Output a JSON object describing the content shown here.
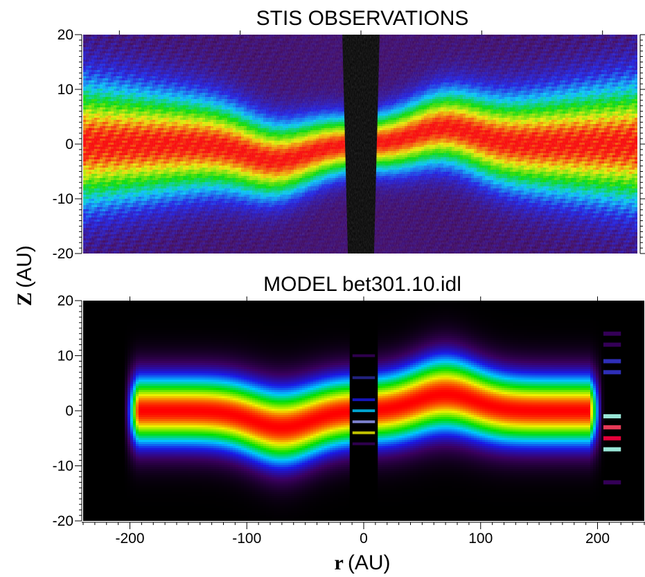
{
  "chart_data": [
    {
      "type": "heatmap",
      "title": "STIS OBSERVATIONS",
      "ylabel_symbol": "Z",
      "ylabel_unit": "(AU)",
      "ylim": [
        -20,
        20
      ],
      "xlim": [
        -230,
        230
      ],
      "y_ticks": [
        "20",
        "10",
        "0",
        "-10",
        "-20"
      ],
      "y_tick_values": [
        20,
        10,
        0,
        -10,
        -20
      ],
      "colormap": [
        "#000000",
        "#3a0060",
        "#1a1ae6",
        "#00c8ff",
        "#00e000",
        "#f0f000",
        "#ff0000"
      ],
      "masked_region_r": [
        -12,
        12
      ],
      "midplane_warp": {
        "center_r": -70,
        "offset_z": -3
      }
    },
    {
      "type": "heatmap",
      "title": "MODEL  bet301.10.idl",
      "xlabel_symbol": "r",
      "xlabel_unit": "(AU)",
      "ylim": [
        -20,
        20
      ],
      "xlim": [
        -240,
        240
      ],
      "x_ticks": [
        "-200",
        "-100",
        "0",
        "100",
        "200"
      ],
      "x_tick_values": [
        -200,
        -100,
        0,
        100,
        200
      ],
      "y_ticks": [
        "20",
        "10",
        "0",
        "-10",
        "-20"
      ],
      "y_tick_values": [
        20,
        10,
        0,
        -10,
        -20
      ],
      "colormap": [
        "#000000",
        "#3a0060",
        "#1a1ae6",
        "#00c8ff",
        "#00e000",
        "#f0f000",
        "#ff0000"
      ],
      "disk_extent_r": [
        -205,
        205
      ],
      "masked_region_r": [
        -12,
        12
      ],
      "midplane_warp": {
        "center_r": -70,
        "offset_z": -3
      }
    }
  ]
}
